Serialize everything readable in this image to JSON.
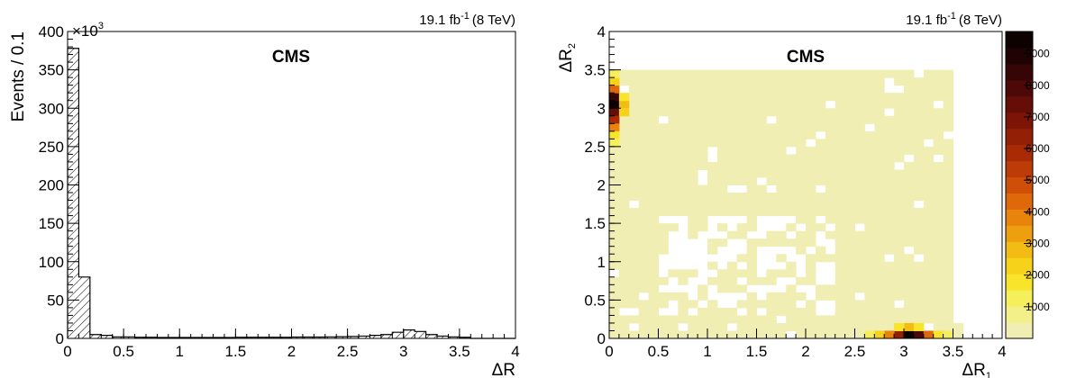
{
  "chart_data": [
    {
      "type": "bar",
      "title": "",
      "label": "CMS",
      "lumi": {
        "value": "19.1 fb",
        "exp": "-1",
        "energy": "(8 TeV)"
      },
      "xlabel": "ΔR",
      "ylabel": "Events / 0.1",
      "y_multiplier": "×10",
      "y_multiplier_exp": "3",
      "xlim": [
        0,
        4
      ],
      "ylim": [
        0,
        400
      ],
      "xticks": [
        "0",
        "0.5",
        "1",
        "1.5",
        "2",
        "2.5",
        "3",
        "3.5",
        "4"
      ],
      "yticks": [
        "0",
        "50",
        "100",
        "150",
        "200",
        "250",
        "300",
        "350",
        "400"
      ],
      "bin_width": 0.1,
      "values": [
        378,
        80,
        5,
        4,
        2,
        2,
        1.5,
        1.5,
        1.2,
        1.2,
        1.2,
        1.2,
        1.2,
        1.2,
        1.2,
        1.5,
        1.5,
        1.5,
        1.5,
        1.5,
        1.8,
        1.8,
        1.8,
        2,
        2.2,
        2.5,
        3,
        4,
        5,
        8,
        11,
        9,
        5,
        3,
        2,
        1.5,
        0,
        0,
        0,
        0
      ],
      "fill": "hatched",
      "grid": false
    },
    {
      "type": "heatmap",
      "title": "",
      "label": "CMS",
      "lumi": {
        "value": "19.1 fb",
        "exp": "-1",
        "energy": "(8 TeV)"
      },
      "xlabel": "ΔR",
      "xlabel_sub": "1",
      "ylabel": "ΔR",
      "ylabel_sub": "2",
      "xlim": [
        0,
        4
      ],
      "ylim": [
        0,
        4
      ],
      "xticks": [
        "0",
        "0.5",
        "1",
        "1.5",
        "2",
        "2.5",
        "3",
        "3.5",
        "4"
      ],
      "yticks": [
        "0",
        "0.5",
        "1",
        "1.5",
        "2",
        "2.5",
        "3",
        "3.5",
        "4"
      ],
      "zlim": [
        0,
        9700
      ],
      "colorbar_ticks": [
        "1000",
        "2000",
        "3000",
        "4000",
        "5000",
        "6000",
        "7000",
        "8000",
        "9000"
      ],
      "colorbar_colors": [
        "#f0eeb3",
        "#f3f08a",
        "#f5ef5c",
        "#f7e42b",
        "#f6d21a",
        "#f3bc14",
        "#ee9f10",
        "#e8830c",
        "#de680a",
        "#cf4f08",
        "#bd3b06",
        "#a82b05",
        "#931f05",
        "#7c1506",
        "#640e07",
        "#4d0808",
        "#360506",
        "#1f0303",
        "#0d0101"
      ],
      "description_bins": {
        "bin_width": 0.1,
        "hot_spots": [
          {
            "x": 0.05,
            "y": 3.05,
            "z": 9600
          },
          {
            "x": 0.05,
            "y": 3.15,
            "z": 8200
          },
          {
            "x": 0.05,
            "y": 2.95,
            "z": 7600
          },
          {
            "x": 0.05,
            "y": 2.85,
            "z": 5800
          },
          {
            "x": 0.05,
            "y": 3.25,
            "z": 4500
          },
          {
            "x": 0.05,
            "y": 2.75,
            "z": 3600
          },
          {
            "x": 0.15,
            "y": 3.05,
            "z": 2600
          },
          {
            "x": 0.15,
            "y": 2.95,
            "z": 2200
          },
          {
            "x": 0.15,
            "y": 3.15,
            "z": 1800
          },
          {
            "x": 0.05,
            "y": 3.35,
            "z": 2400
          },
          {
            "x": 0.05,
            "y": 2.65,
            "z": 2000
          },
          {
            "x": 0.05,
            "y": 2.55,
            "z": 1200
          },
          {
            "x": 0.05,
            "y": 3.45,
            "z": 1300
          },
          {
            "x": 3.05,
            "y": 0.05,
            "z": 9400
          },
          {
            "x": 3.15,
            "y": 0.05,
            "z": 8000
          },
          {
            "x": 2.95,
            "y": 0.05,
            "z": 6400
          },
          {
            "x": 3.25,
            "y": 0.05,
            "z": 4200
          },
          {
            "x": 2.85,
            "y": 0.05,
            "z": 3600
          },
          {
            "x": 3.05,
            "y": 0.15,
            "z": 2600
          },
          {
            "x": 2.75,
            "y": 0.05,
            "z": 2200
          },
          {
            "x": 3.35,
            "y": 0.05,
            "z": 2000
          },
          {
            "x": 3.15,
            "y": 0.15,
            "z": 1800
          },
          {
            "x": 2.95,
            "y": 0.15,
            "z": 1600
          },
          {
            "x": 2.65,
            "y": 0.05,
            "z": 1200
          },
          {
            "x": 3.45,
            "y": 0.05,
            "z": 1100
          }
        ]
      },
      "grid": false
    }
  ]
}
